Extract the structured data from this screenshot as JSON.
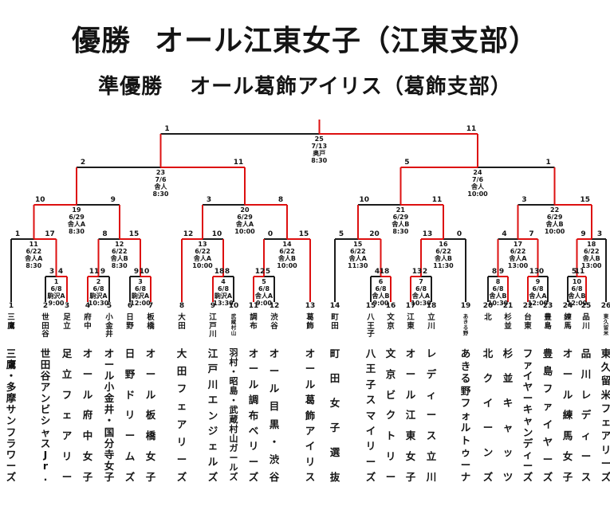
{
  "page": {
    "champion_label": "優勝",
    "champion": "オール江東女子（江東支部）",
    "runner_up_label": "準優勝",
    "runner_up": "オール葛飾アイリス（葛飾支部）"
  },
  "colors": {
    "line": "#1c1c1c",
    "winner_path": "#dd1010",
    "text": "#141414",
    "background": "#ffffff"
  },
  "teams": [
    {
      "no": "1",
      "branch": "三鷹",
      "name": "三鷹・多摩サンフラワーズ"
    },
    {
      "no": "2",
      "branch": "世田谷",
      "name": "世田谷アンビシャスJr."
    },
    {
      "no": "3",
      "branch": "足立",
      "name": "足立フェアリー"
    },
    {
      "no": "4",
      "branch": "府中",
      "name": "オール府中女子"
    },
    {
      "no": "5",
      "branch": "小金井",
      "name": "オール小金井・国分寺女子"
    },
    {
      "no": "6",
      "branch": "日野",
      "name": "日野ドリームズ"
    },
    {
      "no": "7",
      "branch": "板橋",
      "name": "オール板橋女子"
    },
    {
      "no": "8",
      "branch": "大田",
      "name": "大田フェアリーズ"
    },
    {
      "no": "9",
      "branch": "江戸川",
      "name": "江戸川エンジェルズ"
    },
    {
      "no": "10",
      "branch": "武蔵村山",
      "name": "羽村・昭島・武蔵村山ガールズ"
    },
    {
      "no": "11",
      "branch": "調布",
      "name": "オール調布ベリーズ"
    },
    {
      "no": "12",
      "branch": "渋谷",
      "name": "オール目黒・渋谷"
    },
    {
      "no": "13",
      "branch": "葛飾",
      "name": "オール葛飾アイリス"
    },
    {
      "no": "14",
      "branch": "町田",
      "name": "町田女子選抜"
    },
    {
      "no": "15",
      "branch": "八王子",
      "name": "八王子スマイリーズ"
    },
    {
      "no": "16",
      "branch": "文京",
      "name": "文京ビクトリー"
    },
    {
      "no": "17",
      "branch": "江東",
      "name": "オール江東女子"
    },
    {
      "no": "18",
      "branch": "立川",
      "name": "レディース立川"
    },
    {
      "no": "19",
      "branch": "あきる野",
      "name": "あきる野フォルトゥーナ"
    },
    {
      "no": "20",
      "branch": "北",
      "name": "北クイーンズ"
    },
    {
      "no": "21",
      "branch": "杉並",
      "name": "杉並キャッツ"
    },
    {
      "no": "22",
      "branch": "台東",
      "name": "ファイヤーキャンディーズ"
    },
    {
      "no": "23",
      "branch": "豊島",
      "name": "豊島ファイヤーズ"
    },
    {
      "no": "24",
      "branch": "練馬",
      "name": "オール練馬女子"
    },
    {
      "no": "25",
      "branch": "品川",
      "name": "品川レディース"
    },
    {
      "no": "26",
      "branch": "東久留米",
      "name": "東久留米フェアリーズ"
    }
  ],
  "matches": [
    {
      "no": "1",
      "round": 1,
      "date": "6/8",
      "venue": "駒沢A",
      "time": "9:00",
      "slots": [
        "team:2",
        "team:3"
      ],
      "scores": [
        "3",
        "4"
      ],
      "winner": "right"
    },
    {
      "no": "2",
      "round": 1,
      "date": "6/8",
      "venue": "駒沢A",
      "time": "10:30",
      "slots": [
        "team:4",
        "team:5"
      ],
      "scores": [
        "11",
        "9"
      ],
      "winner": "left"
    },
    {
      "no": "3",
      "round": 1,
      "date": "6/8",
      "venue": "駒沢A",
      "time": "12:00",
      "slots": [
        "team:6",
        "team:7"
      ],
      "scores": [
        "9",
        "10"
      ],
      "winner": "right"
    },
    {
      "no": "4",
      "round": 1,
      "date": "6/8",
      "venue": "駒沢A",
      "time": "13:30",
      "slots": [
        "team:9",
        "team:10"
      ],
      "scores": [
        "18",
        "8"
      ],
      "winner": "left"
    },
    {
      "no": "5",
      "round": 1,
      "date": "6/8",
      "venue": "舎人A",
      "time": "9:00",
      "slots": [
        "team:11",
        "team:12"
      ],
      "scores": [
        "12",
        "5"
      ],
      "winner": "left"
    },
    {
      "no": "6",
      "round": 1,
      "date": "6/8",
      "venue": "舎人B",
      "time": "9:00",
      "slots": [
        "team:15",
        "team:16"
      ],
      "scores": [
        "4",
        "18"
      ],
      "winner": "right"
    },
    {
      "no": "7",
      "round": 1,
      "date": "6/8",
      "venue": "舎人A",
      "time": "10:30",
      "slots": [
        "team:17",
        "team:18"
      ],
      "scores": [
        "13",
        "2"
      ],
      "winner": "left"
    },
    {
      "no": "8",
      "round": 1,
      "date": "6/8",
      "venue": "舎人B",
      "time": "10:30",
      "slots": [
        "team:20",
        "team:21"
      ],
      "scores": [
        "8",
        "9"
      ],
      "winner": "right"
    },
    {
      "no": "9",
      "round": 1,
      "date": "6/8",
      "venue": "舎人A",
      "time": "12:00",
      "slots": [
        "team:22",
        "team:23"
      ],
      "scores": [
        "13",
        "0"
      ],
      "winner": "left"
    },
    {
      "no": "10",
      "round": 1,
      "date": "6/8",
      "venue": "舎人B",
      "time": "12:00",
      "slots": [
        "team:24",
        "team:25"
      ],
      "scores": [
        "5",
        "11"
      ],
      "winner": "right"
    },
    {
      "no": "11",
      "round": 2,
      "date": "6/22",
      "venue": "舎人A",
      "time": "8:30",
      "slots": [
        "team:1",
        "match:1"
      ],
      "scores": [
        "1",
        "17"
      ],
      "winner": "right"
    },
    {
      "no": "12",
      "round": 2,
      "date": "6/22",
      "venue": "舎人B",
      "time": "8:30",
      "slots": [
        "match:2",
        "match:3"
      ],
      "scores": [
        "8",
        "15"
      ],
      "winner": "right"
    },
    {
      "no": "13",
      "round": 2,
      "date": "6/22",
      "venue": "舎人A",
      "time": "10:00",
      "slots": [
        "team:8",
        "match:4"
      ],
      "scores": [
        "12",
        "10"
      ],
      "winner": "left"
    },
    {
      "no": "14",
      "round": 2,
      "date": "6/22",
      "venue": "舎人B",
      "time": "10:00",
      "slots": [
        "match:5",
        "team:13"
      ],
      "scores": [
        "0",
        "15"
      ],
      "winner": "right"
    },
    {
      "no": "15",
      "round": 2,
      "date": "6/22",
      "venue": "舎人A",
      "time": "11:30",
      "slots": [
        "team:14",
        "match:6"
      ],
      "scores": [
        "5",
        "20"
      ],
      "winner": "right"
    },
    {
      "no": "16",
      "round": 2,
      "date": "6/22",
      "venue": "舎人B",
      "time": "11:30",
      "slots": [
        "match:7",
        "team:19"
      ],
      "scores": [
        "13",
        "0"
      ],
      "winner": "left"
    },
    {
      "no": "17",
      "round": 2,
      "date": "6/22",
      "venue": "舎人A",
      "time": "13:00",
      "slots": [
        "match:8",
        "match:9"
      ],
      "scores": [
        "4",
        "7"
      ],
      "winner": "right"
    },
    {
      "no": "18",
      "round": 2,
      "date": "6/22",
      "venue": "舎人B",
      "time": "13:00",
      "slots": [
        "match:10",
        "team:26"
      ],
      "scores": [
        "9",
        "3"
      ],
      "winner": "left"
    },
    {
      "no": "19",
      "round": 3,
      "date": "6/29",
      "venue": "舎人A",
      "time": "8:30",
      "slots": [
        "match:11",
        "match:12"
      ],
      "scores": [
        "10",
        "9"
      ],
      "winner": "left"
    },
    {
      "no": "20",
      "round": 3,
      "date": "6/29",
      "venue": "舎人A",
      "time": "10:00",
      "slots": [
        "match:13",
        "match:14"
      ],
      "scores": [
        "3",
        "8"
      ],
      "winner": "right"
    },
    {
      "no": "21",
      "round": 3,
      "date": "6/29",
      "venue": "舎人B",
      "time": "8:30",
      "slots": [
        "match:15",
        "match:16"
      ],
      "scores": [
        "10",
        "11"
      ],
      "winner": "right"
    },
    {
      "no": "22",
      "round": 3,
      "date": "6/29",
      "venue": "舎人B",
      "time": "10:00",
      "slots": [
        "match:17",
        "match:18"
      ],
      "scores": [
        "3",
        "15"
      ],
      "winner": "right"
    },
    {
      "no": "23",
      "round": 4,
      "date": "7/6",
      "venue": "舎人",
      "time": "8:30",
      "slots": [
        "match:19",
        "match:20"
      ],
      "scores": [
        "2",
        "11"
      ],
      "winner": "right"
    },
    {
      "no": "24",
      "round": 4,
      "date": "7/6",
      "venue": "舎人",
      "time": "10:00",
      "slots": [
        "match:21",
        "match:22"
      ],
      "scores": [
        "5",
        "1"
      ],
      "winner": "left"
    },
    {
      "no": "25",
      "round": 5,
      "date": "7/13",
      "venue": "奥戸",
      "time": "8:30",
      "slots": [
        "match:23",
        "match:24"
      ],
      "scores": [
        "1",
        "11"
      ],
      "winner": "right"
    }
  ]
}
